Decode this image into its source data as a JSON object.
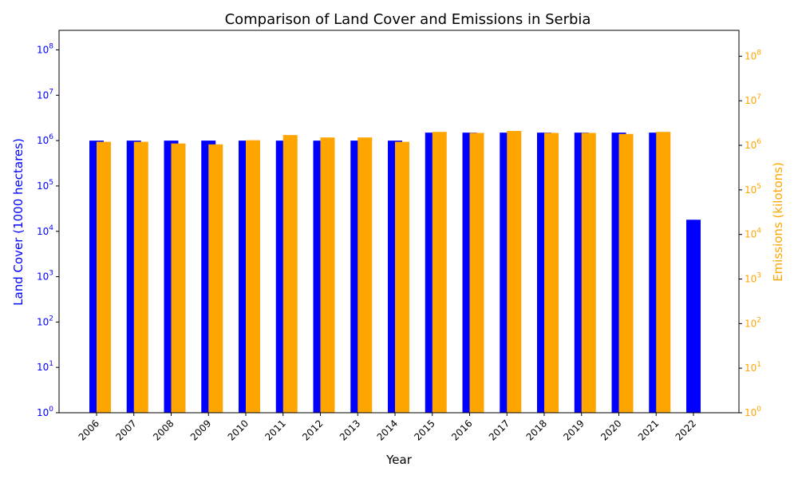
{
  "chart_data": {
    "type": "bar",
    "title": "Comparison of Land Cover and Emissions in Serbia",
    "xlabel": "Year",
    "categories": [
      "2006",
      "2007",
      "2008",
      "2009",
      "2010",
      "2011",
      "2012",
      "2013",
      "2014",
      "2015",
      "2016",
      "2017",
      "2018",
      "2019",
      "2020",
      "2021",
      "2022"
    ],
    "left_axis": {
      "label": "Land Cover (1000 hectares)",
      "scale": "log",
      "ylim": [
        1,
        270000000
      ],
      "tick_exponents": [
        0,
        1,
        2,
        3,
        4,
        5,
        6,
        7,
        8
      ],
      "color": "#0000ff"
    },
    "right_axis": {
      "label": "Emissions (kilotons)",
      "scale": "log",
      "ylim": [
        1,
        380000000
      ],
      "tick_exponents": [
        0,
        1,
        2,
        3,
        4,
        5,
        6,
        7,
        8
      ],
      "color": "#ffa500"
    },
    "series": [
      {
        "axis": "left",
        "color": "#0000ff",
        "values": [
          1000000,
          1000000,
          1000000,
          1000000,
          1000000,
          1000000,
          1000000,
          1000000,
          1000000,
          1500000,
          1500000,
          1500000,
          1500000,
          1500000,
          1500000,
          1500000,
          18000
        ]
      },
      {
        "axis": "right",
        "color": "#ffa500",
        "values": [
          1200000,
          1200000,
          1100000,
          1050000,
          1300000,
          1700000,
          1500000,
          1500000,
          1200000,
          2000000,
          1900000,
          2100000,
          1900000,
          1900000,
          1800000,
          2000000,
          null
        ]
      }
    ]
  }
}
